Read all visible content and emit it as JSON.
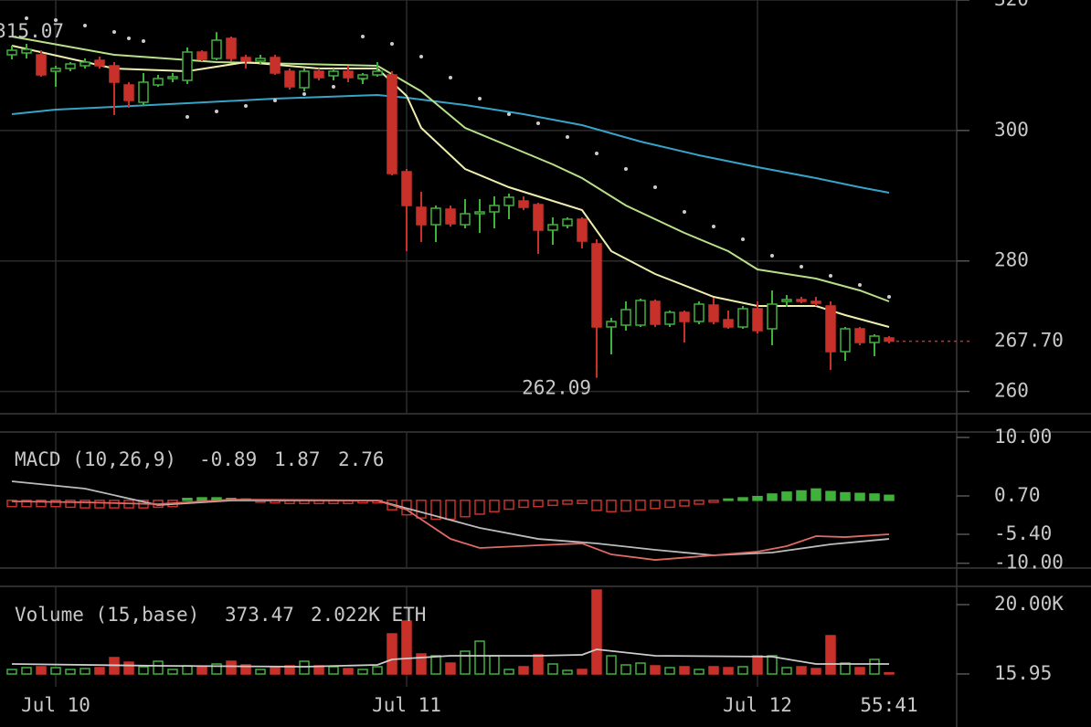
{
  "chart_data": [
    {
      "type": "candlestick",
      "ylim": [
        256.72,
        320
      ],
      "yticks": [
        260,
        280,
        300,
        320
      ],
      "grid": true,
      "xticks": [
        {
          "value": 3,
          "label": "Jul 10"
        },
        {
          "value": 27,
          "label": "Jul 11"
        },
        {
          "value": 51,
          "label": "Jul 12"
        }
      ],
      "countdown": "55:41",
      "up_color": "#41b13c",
      "down_color": "#c8312a",
      "open": [
        311.6,
        311.88,
        311.6,
        309.08,
        309.5,
        309.92,
        310.76,
        309.92,
        306.98,
        304.32,
        306.98,
        307.96,
        307.68,
        312.02,
        311.04,
        314.12,
        311.18,
        310.62,
        311.18,
        309.08,
        306.56,
        309.08,
        308.38,
        309.08,
        307.96,
        308.52,
        308.52,
        293.68,
        288.22,
        285.56,
        287.94,
        285.56,
        287.24,
        287.52,
        288.5,
        289.2,
        288.64,
        284.72,
        285.42,
        286.4,
        282.62,
        269.88,
        270.16,
        270.16,
        273.8,
        270.3,
        272.12,
        270.72,
        273.24,
        271,
        269.88,
        272.68,
        269.6,
        273.8,
        274.08,
        273.8,
        273.1,
        266.1,
        269.6,
        267.5,
        268.2
      ],
      "high": [
        313,
        313.28,
        312.3,
        309.92,
        310.48,
        311.04,
        311.32,
        310.48,
        307.4,
        308.8,
        308.52,
        308.8,
        312.72,
        312.3,
        315.07,
        314.4,
        311.6,
        311.6,
        311.6,
        309.5,
        309.5,
        309.5,
        309.5,
        309.92,
        308.8,
        310.48,
        309.08,
        294.1,
        290.6,
        288.5,
        288.5,
        289.48,
        289.48,
        289.9,
        290.32,
        289.9,
        288.92,
        286.68,
        286.68,
        286.68,
        283.32,
        271.28,
        273.8,
        274.22,
        274.08,
        272.4,
        272.4,
        273.8,
        274.36,
        272.4,
        273.1,
        273.8,
        275.48,
        274.78,
        274.5,
        274.5,
        273.8,
        269.88,
        269.88,
        268.76,
        268.48
      ],
      "low": [
        310.9,
        311.04,
        308.24,
        306.7,
        309.08,
        309.5,
        309.5,
        302.36,
        303.48,
        303.9,
        306.7,
        307.4,
        307.12,
        310.62,
        310.76,
        310.62,
        309.5,
        310.2,
        308.52,
        306.28,
        306,
        307.68,
        307.68,
        307.4,
        307.12,
        308.24,
        293.12,
        281.5,
        282.9,
        282.9,
        285.28,
        285,
        284.3,
        285,
        286.4,
        287.8,
        281.08,
        282.48,
        285,
        281.92,
        262.09,
        265.68,
        269.32,
        269.88,
        269.88,
        269.88,
        267.5,
        270.3,
        270.3,
        269.6,
        269.6,
        268.9,
        267.08,
        272.96,
        273.52,
        273.1,
        263.3,
        264.7,
        267.08,
        265.4,
        267.36
      ],
      "close": [
        312.3,
        312.44,
        308.52,
        309.5,
        310.2,
        310.48,
        309.92,
        307.4,
        304.6,
        307.4,
        307.96,
        308.24,
        312.02,
        310.9,
        313.84,
        311.04,
        310.62,
        311.04,
        308.8,
        306.7,
        309.08,
        308.1,
        309.08,
        308.1,
        308.52,
        309.08,
        293.4,
        288.5,
        285.56,
        288.08,
        285.7,
        287.24,
        287.52,
        288.5,
        289.76,
        288.22,
        284.72,
        285.56,
        286.4,
        283.04,
        269.88,
        270.72,
        272.54,
        273.94,
        270.3,
        272.12,
        270.72,
        273.38,
        270.72,
        269.88,
        272.68,
        269.32,
        273.38,
        274.08,
        273.8,
        273.52,
        266.1,
        269.6,
        267.5,
        268.48,
        267.7
      ],
      "last_label": "267.70",
      "annotations": [
        315.07,
        262.09
      ],
      "lines": [
        {
          "color": "#38a3c8",
          "x": [
            0,
            3,
            7,
            12,
            18,
            25,
            27,
            31,
            35,
            39,
            43,
            47,
            51,
            55,
            58,
            60
          ],
          "values": [
            302.5,
            303.2,
            303.62,
            304.18,
            304.88,
            305.44,
            305.02,
            303.9,
            302.5,
            300.82,
            298.3,
            296.2,
            294.38,
            292.7,
            291.3,
            290.46
          ]
        },
        {
          "color": "#b8e08a",
          "x": [
            0,
            7,
            14,
            25,
            28,
            31,
            34,
            37,
            39,
            42,
            46,
            49,
            51,
            55,
            58,
            60
          ],
          "values": [
            314.4,
            311.6,
            310.48,
            309.92,
            306,
            300.4,
            297.6,
            294.8,
            292.7,
            288.5,
            284.3,
            281.5,
            278.7,
            277.3,
            275.48,
            273.8
          ]
        },
        {
          "color": "#eeeeb0",
          "x": [
            0,
            7,
            12,
            16,
            21,
            25,
            27,
            28,
            31,
            34,
            36,
            39,
            41,
            44,
            48,
            51,
            55,
            57,
            60
          ],
          "values": [
            313,
            309.5,
            309.08,
            310.48,
            309.5,
            309.5,
            305.3,
            300.4,
            294.1,
            291.3,
            289.9,
            287.8,
            281.5,
            278,
            274.5,
            273.1,
            273.1,
            271.7,
            269.88
          ]
        }
      ],
      "sar": {
        "color": "#cccccc",
        "x": [
          1,
          3,
          5,
          7,
          8,
          9,
          12,
          14,
          16,
          18,
          20,
          22,
          24,
          24,
          26,
          28,
          30,
          32,
          34,
          36,
          38,
          40,
          42,
          44,
          46,
          48,
          50,
          52,
          54,
          56,
          58,
          60
        ],
        "values": [
          317.2,
          316.92,
          316.08,
          315.1,
          314.12,
          313.7,
          302.08,
          302.92,
          303.76,
          304.6,
          305.58,
          306.7,
          307.96,
          314.4,
          313.28,
          311.32,
          308.1,
          304.88,
          302.5,
          301.1,
          299,
          296.48,
          294.1,
          291.3,
          287.52,
          285.28,
          283.32,
          280.8,
          279.12,
          277.72,
          276.32,
          274.5
        ]
      }
    },
    {
      "type": "macd",
      "title": "MACD (10,26,9)",
      "readouts": [
        {
          "value": -0.89,
          "color": "#e0443c"
        },
        {
          "value": 1.87,
          "color": "#e0443c"
        },
        {
          "value": 2.76,
          "color": "#c8c8c8"
        }
      ],
      "ylim": [
        -10.77,
        11.01
      ],
      "yticks": [
        {
          "value": 10,
          "label": "10.00"
        },
        {
          "value": 0.7,
          "label": "0.70"
        },
        {
          "value": -5.4,
          "label": "-5.40"
        },
        {
          "value": -10,
          "label": "-10.00"
        }
      ],
      "up_color": "#41b13c",
      "down_color": "#c8312a",
      "histogram": [
        -1.0,
        -1.0,
        -1.0,
        -1.0,
        -1.1,
        -1.2,
        -1.2,
        -1.2,
        -1.2,
        -1.2,
        -1.1,
        -1.0,
        0.3,
        0.4,
        0.4,
        0.3,
        0.2,
        -0.3,
        -0.4,
        -0.5,
        -0.5,
        -0.5,
        -0.5,
        -0.5,
        -0.4,
        -0.4,
        -1.5,
        -2.3,
        -2.8,
        -3.0,
        -3.0,
        -2.6,
        -2.2,
        -1.8,
        -1.4,
        -1.1,
        -1.0,
        -0.8,
        -0.6,
        -0.5,
        -1.6,
        -1.8,
        -1.7,
        -1.5,
        -1.3,
        -1.1,
        -0.9,
        -0.6,
        -0.3,
        0.2,
        0.4,
        0.6,
        1.0,
        1.3,
        1.5,
        1.8,
        1.4,
        1.2,
        1.1,
        1.0,
        0.8
      ],
      "lines": [
        {
          "color": "#bbbbbb",
          "x": [
            0,
            5,
            10,
            15,
            25,
            29,
            32,
            36,
            40,
            44,
            48,
            52,
            56,
            60
          ],
          "values": [
            3.02,
            1.86,
            -0.75,
            -0.03,
            -0.03,
            -2.5,
            -4.38,
            -6.13,
            -6.85,
            -7.87,
            -8.74,
            -8.3,
            -7.0,
            -6.13
          ]
        },
        {
          "color": "#e06a64",
          "x": [
            0,
            5,
            10,
            15,
            25,
            27,
            30,
            32,
            36,
            39,
            41,
            44,
            48,
            51,
            53,
            55,
            57,
            60
          ],
          "values": [
            -0.17,
            -0.32,
            -0.61,
            0.12,
            -0.03,
            -1.48,
            -6.13,
            -7.58,
            -7.14,
            -6.85,
            -8.6,
            -9.47,
            -8.74,
            -8.16,
            -7.29,
            -5.69,
            -5.84,
            -5.4
          ]
        }
      ]
    },
    {
      "type": "volume",
      "title": "Volume (15,base)",
      "readouts": [
        {
          "value": 373.47,
          "color": "#e0443c"
        },
        {
          "value": "2.022K ETH",
          "color": "#c8c8c8"
        }
      ],
      "ylim": [
        0,
        25260
      ],
      "yticks": [
        {
          "value": 20000,
          "label": "20.00K"
        },
        15.95
      ],
      "values": [
        1315,
        1841,
        2104,
        1841,
        1315,
        1578,
        1841,
        4734,
        3419,
        2104,
        3682,
        1315,
        2367,
        2104,
        2893,
        3682,
        2630,
        1315,
        2104,
        2367,
        3682,
        2367,
        2104,
        1578,
        1315,
        2104,
        11572,
        15254,
        5786,
        5260,
        3156,
        6575,
        9468,
        5260,
        1315,
        2104,
        5523,
        2893,
        1052,
        1315,
        24196,
        5260,
        2630,
        3156,
        2367,
        1841,
        2104,
        1315,
        2104,
        1841,
        2104,
        5260,
        5260,
        1841,
        2104,
        1578,
        11046,
        3156,
        1841,
        4208,
        373.47
      ],
      "lines": [
        {
          "color": "#cccccc",
          "x": [
            0,
            10,
            20,
            25,
            26,
            30,
            36,
            39,
            40,
            44,
            52,
            55,
            60
          ],
          "values": [
            2893,
            2367,
            2104,
            2630,
            4208,
            5260,
            5260,
            5523,
            7101,
            5260,
            4997,
            2893,
            2893
          ]
        }
      ]
    }
  ]
}
